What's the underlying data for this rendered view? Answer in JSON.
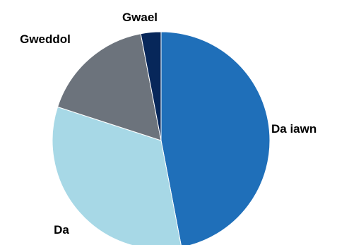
{
  "chart_data": {
    "type": "pie",
    "start_angle_deg": 0,
    "direction": "clockwise",
    "legend": "none",
    "slices": [
      {
        "label": "Da iawn",
        "value": 47,
        "color": "#1f6fb9"
      },
      {
        "label": "Da",
        "value": 33,
        "color": "#a7d8e6"
      },
      {
        "label": "Gweddol",
        "value": 17,
        "color": "#6c737c"
      },
      {
        "label": "Gwael",
        "value": 3,
        "color": "#07275a"
      }
    ]
  }
}
